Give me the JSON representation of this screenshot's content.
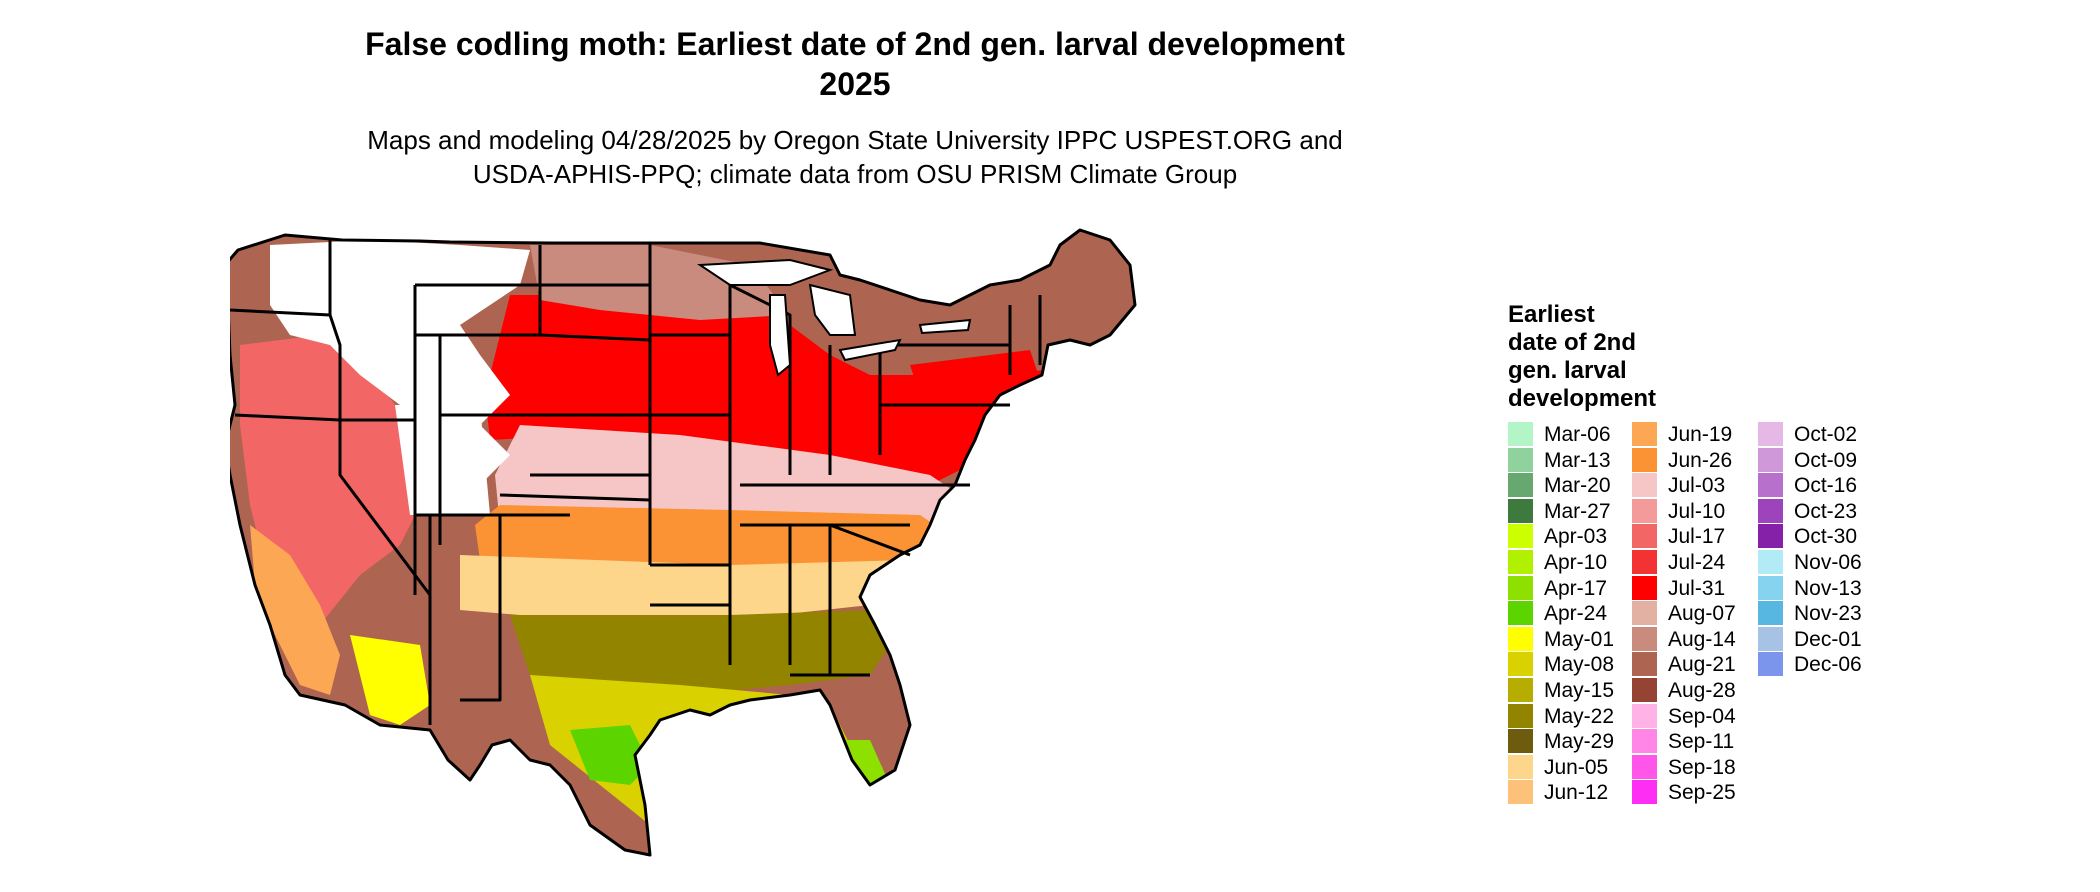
{
  "title": {
    "line1": "False codling moth: Earliest date of 2nd gen. larval development",
    "line2": "2025"
  },
  "subtitle": {
    "line1": "Maps and modeling 04/28/2025 by Oregon State University IPPC USPEST.ORG and",
    "line2": "USDA-APHIS-PPQ; climate data from OSU PRISM Climate Group"
  },
  "legend": {
    "title_lines": [
      "Earliest",
      "date of 2nd",
      "gen. larval",
      "development"
    ],
    "columns": [
      [
        {
          "label": "Mar-06",
          "color": "#b3f5c6"
        },
        {
          "label": "Mar-13",
          "color": "#8fd29e"
        },
        {
          "label": "Mar-20",
          "color": "#66a86f"
        },
        {
          "label": "Mar-27",
          "color": "#3e7a3e"
        },
        {
          "label": "Apr-03",
          "color": "#ccff00"
        },
        {
          "label": "Apr-10",
          "color": "#b0f000"
        },
        {
          "label": "Apr-17",
          "color": "#8ee000"
        },
        {
          "label": "Apr-24",
          "color": "#5cd400"
        },
        {
          "label": "May-01",
          "color": "#ffff00"
        },
        {
          "label": "May-08",
          "color": "#dad200"
        },
        {
          "label": "May-15",
          "color": "#b6ad00"
        },
        {
          "label": "May-22",
          "color": "#938400"
        },
        {
          "label": "May-29",
          "color": "#6e5c0e"
        },
        {
          "label": "Jun-05",
          "color": "#fdd68c"
        },
        {
          "label": "Jun-12",
          "color": "#fdc17a"
        }
      ],
      [
        {
          "label": "Jun-19",
          "color": "#fba753"
        },
        {
          "label": "Jun-26",
          "color": "#fb9334"
        },
        {
          "label": "Jul-03",
          "color": "#f6c6c6"
        },
        {
          "label": "Jul-10",
          "color": "#f39a9a"
        },
        {
          "label": "Jul-17",
          "color": "#f26666"
        },
        {
          "label": "Jul-24",
          "color": "#f33333"
        },
        {
          "label": "Jul-31",
          "color": "#ff0000"
        },
        {
          "label": "Aug-07",
          "color": "#e3b1a4"
        },
        {
          "label": "Aug-14",
          "color": "#c98b7e"
        },
        {
          "label": "Aug-21",
          "color": "#ad6552"
        },
        {
          "label": "Aug-28",
          "color": "#954433"
        },
        {
          "label": "Sep-04",
          "color": "#ffb2e6"
        },
        {
          "label": "Sep-11",
          "color": "#ff85e6"
        },
        {
          "label": "Sep-18",
          "color": "#ff55e8"
        },
        {
          "label": "Sep-25",
          "color": "#ff2ef5"
        }
      ],
      [
        {
          "label": "Oct-02",
          "color": "#e6b8e6"
        },
        {
          "label": "Oct-09",
          "color": "#cf99d9"
        },
        {
          "label": "Oct-16",
          "color": "#b770cc"
        },
        {
          "label": "Oct-23",
          "color": "#9d44bd"
        },
        {
          "label": "Oct-30",
          "color": "#8521a9"
        },
        {
          "label": "Nov-06",
          "color": "#b2eaf6"
        },
        {
          "label": "Nov-13",
          "color": "#85d3ee"
        },
        {
          "label": "Nov-23",
          "color": "#57b7e0"
        },
        {
          "label": "Dec-01",
          "color": "#a6c3e6"
        },
        {
          "label": "Dec-06",
          "color": "#7b95ec"
        }
      ]
    ]
  },
  "map": {
    "region": "Contiguous United States",
    "colors": {
      "background": "#ffffff",
      "border": "#000000",
      "lake": "#ffffff"
    }
  }
}
